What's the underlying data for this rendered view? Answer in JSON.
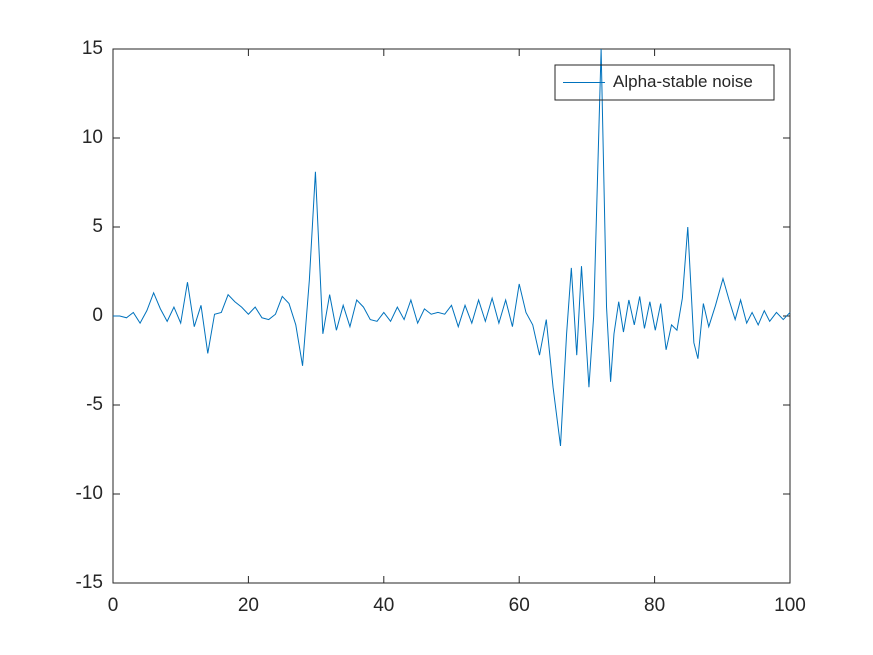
{
  "chart_data": {
    "type": "line",
    "x": [
      0,
      1,
      2,
      3,
      4,
      5,
      6,
      7,
      8,
      9,
      10,
      11,
      12,
      13,
      14,
      15,
      16,
      17,
      18,
      19,
      20,
      21,
      22,
      23,
      24,
      25,
      26,
      27,
      28,
      29,
      29.9,
      31,
      32,
      33,
      34,
      35,
      36,
      37,
      38,
      39,
      40,
      41,
      42,
      43,
      44,
      45,
      46,
      47,
      48,
      49,
      50,
      51,
      52,
      53,
      54,
      55,
      56,
      57,
      58,
      59,
      60,
      61,
      62,
      63,
      64,
      65,
      66.1,
      67,
      67.7,
      68.5,
      69.2,
      70.3,
      71,
      72.1,
      72.9,
      73.5,
      74,
      74.7,
      75.4,
      76.2,
      77,
      77.8,
      78.5,
      79.3,
      80.1,
      80.9,
      81.7,
      82.5,
      83.3,
      84.1,
      84.9,
      85.8,
      86.4,
      87.2,
      88,
      89,
      90.1,
      91,
      91.9,
      92.7,
      93.6,
      94.4,
      95.3,
      96.2,
      97,
      98,
      99,
      100
    ],
    "series": [
      {
        "name": "Alpha-stable noise",
        "color": "#0072bd",
        "values": [
          0,
          0,
          -0.1,
          0.2,
          -0.4,
          0.3,
          1.3,
          0.4,
          -0.3,
          0.5,
          -0.4,
          1.9,
          -0.6,
          0.6,
          -2.1,
          0.1,
          0.2,
          1.2,
          0.8,
          0.5,
          0.1,
          0.5,
          -0.1,
          -0.2,
          0.1,
          1.1,
          0.7,
          -0.5,
          -2.8,
          2,
          8.1,
          -1,
          1.2,
          -0.8,
          0.6,
          -0.6,
          0.9,
          0.5,
          -0.2,
          -0.3,
          0.2,
          -0.3,
          0.5,
          -0.2,
          0.9,
          -0.4,
          0.4,
          0.1,
          0.2,
          0.1,
          0.6,
          -0.6,
          0.6,
          -0.4,
          0.9,
          -0.3,
          1,
          -0.4,
          0.9,
          -0.6,
          1.8,
          0.2,
          -0.5,
          -2.2,
          -0.2,
          -4,
          -7.3,
          -1,
          2.7,
          -2.2,
          2.8,
          -4,
          0,
          15,
          0.5,
          -3.7,
          -1,
          0.8,
          -0.9,
          0.9,
          -0.5,
          1.1,
          -0.7,
          0.8,
          -0.8,
          0.7,
          -1.9,
          -0.5,
          -0.8,
          1,
          5,
          -1.5,
          -2.4,
          0.7,
          -0.6,
          0.6,
          2.1,
          0.9,
          -0.2,
          0.9,
          -0.4,
          0.2,
          -0.5,
          0.3,
          -0.3,
          0.2,
          -0.2,
          0.2
        ]
      }
    ],
    "xlim": [
      0,
      100
    ],
    "xticks": [
      0,
      20,
      40,
      60,
      80,
      100
    ],
    "ylim": [
      -15,
      15
    ],
    "yticks": [
      -15,
      -10,
      -5,
      0,
      5,
      10,
      15
    ],
    "legend": "upper right"
  }
}
